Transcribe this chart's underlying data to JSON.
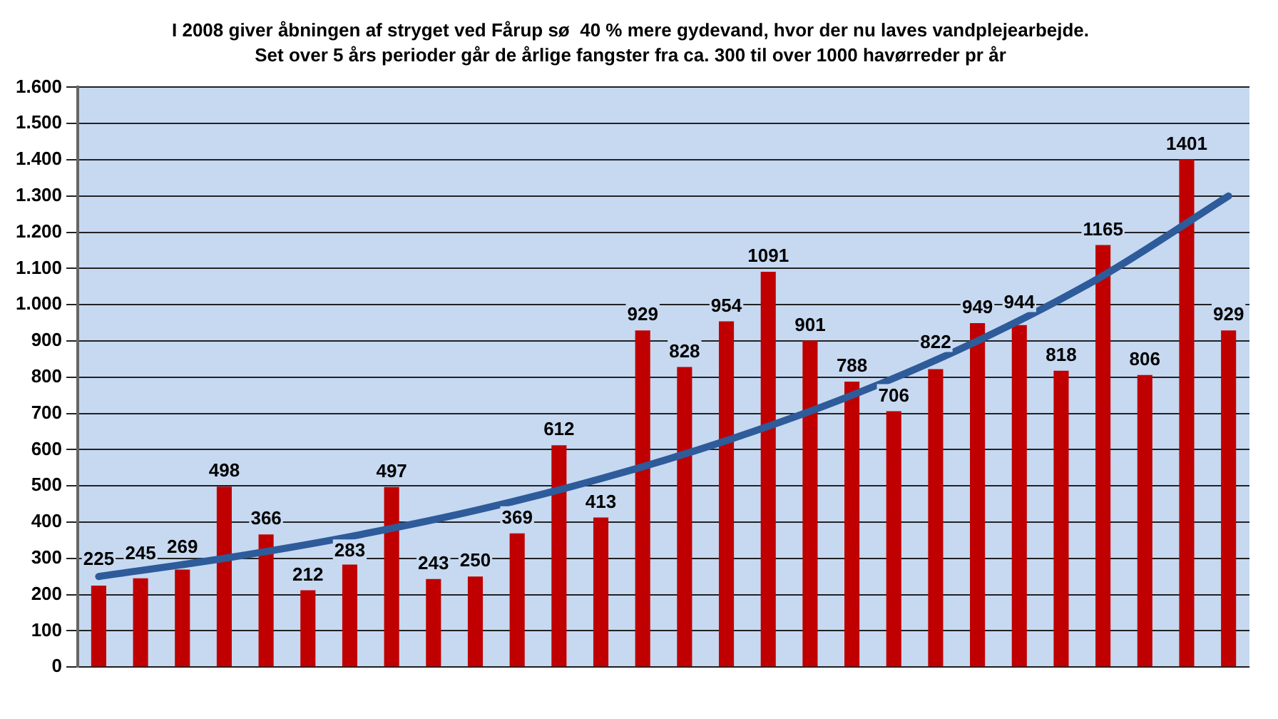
{
  "chart_data": {
    "type": "bar",
    "title": "I 2008 giver åbningen af stryget ved Fårup sø  40 % mere gydevand, hvor der nu laves vandplejearbejde.",
    "subtitle": "Set over 5 års perioder går de årlige fangster fra ca. 300 til over 1000 havørreder pr år",
    "categories": [
      null,
      null,
      null,
      null,
      null,
      null,
      null,
      null,
      null,
      null,
      null,
      null,
      null,
      null,
      null,
      null,
      null,
      null,
      null,
      null,
      null,
      null,
      null,
      null,
      null,
      null,
      null,
      null
    ],
    "series": [
      {
        "color": "#c00000",
        "values": [
          225,
          245,
          269,
          498,
          366,
          212,
          283,
          497,
          243,
          250,
          369,
          612,
          413,
          929,
          828,
          954,
          1091,
          901,
          788,
          706,
          822,
          949,
          944,
          818,
          1165,
          806,
          1401,
          929
        ],
        "value_labels": [
          "225",
          "245",
          "269",
          "498",
          "366",
          "212",
          "283",
          "497",
          "243",
          "250",
          "369",
          "612",
          "413",
          "929",
          "828",
          "954",
          "1091",
          "901",
          "788",
          "706",
          "822",
          "949",
          "944",
          "818",
          "1165",
          "806",
          "1401",
          "929"
        ]
      },
      {
        "type": "line",
        "color": "#2e5b9a",
        "values": [
          250,
          null,
          null,
          300,
          null,
          null,
          360,
          null,
          null,
          432,
          null,
          null,
          520,
          null,
          null,
          625,
          null,
          null,
          750,
          null,
          null,
          900,
          null,
          null,
          1080,
          null,
          null,
          1300
        ]
      }
    ],
    "ylim": [
      0,
      1600
    ],
    "yticks": [
      0,
      100,
      200,
      300,
      400,
      500,
      600,
      700,
      800,
      900,
      {
        "value": 1000,
        "label": "1.000"
      },
      {
        "value": 1100,
        "label": "1.100"
      },
      {
        "value": 1200,
        "label": "1.200"
      },
      {
        "value": 1300,
        "label": "1.300"
      },
      {
        "value": 1400,
        "label": "1.400"
      },
      {
        "value": 1500,
        "label": "1.500"
      },
      {
        "value": 1600,
        "label": "1.600"
      }
    ],
    "grid": "y",
    "legend": false
  }
}
